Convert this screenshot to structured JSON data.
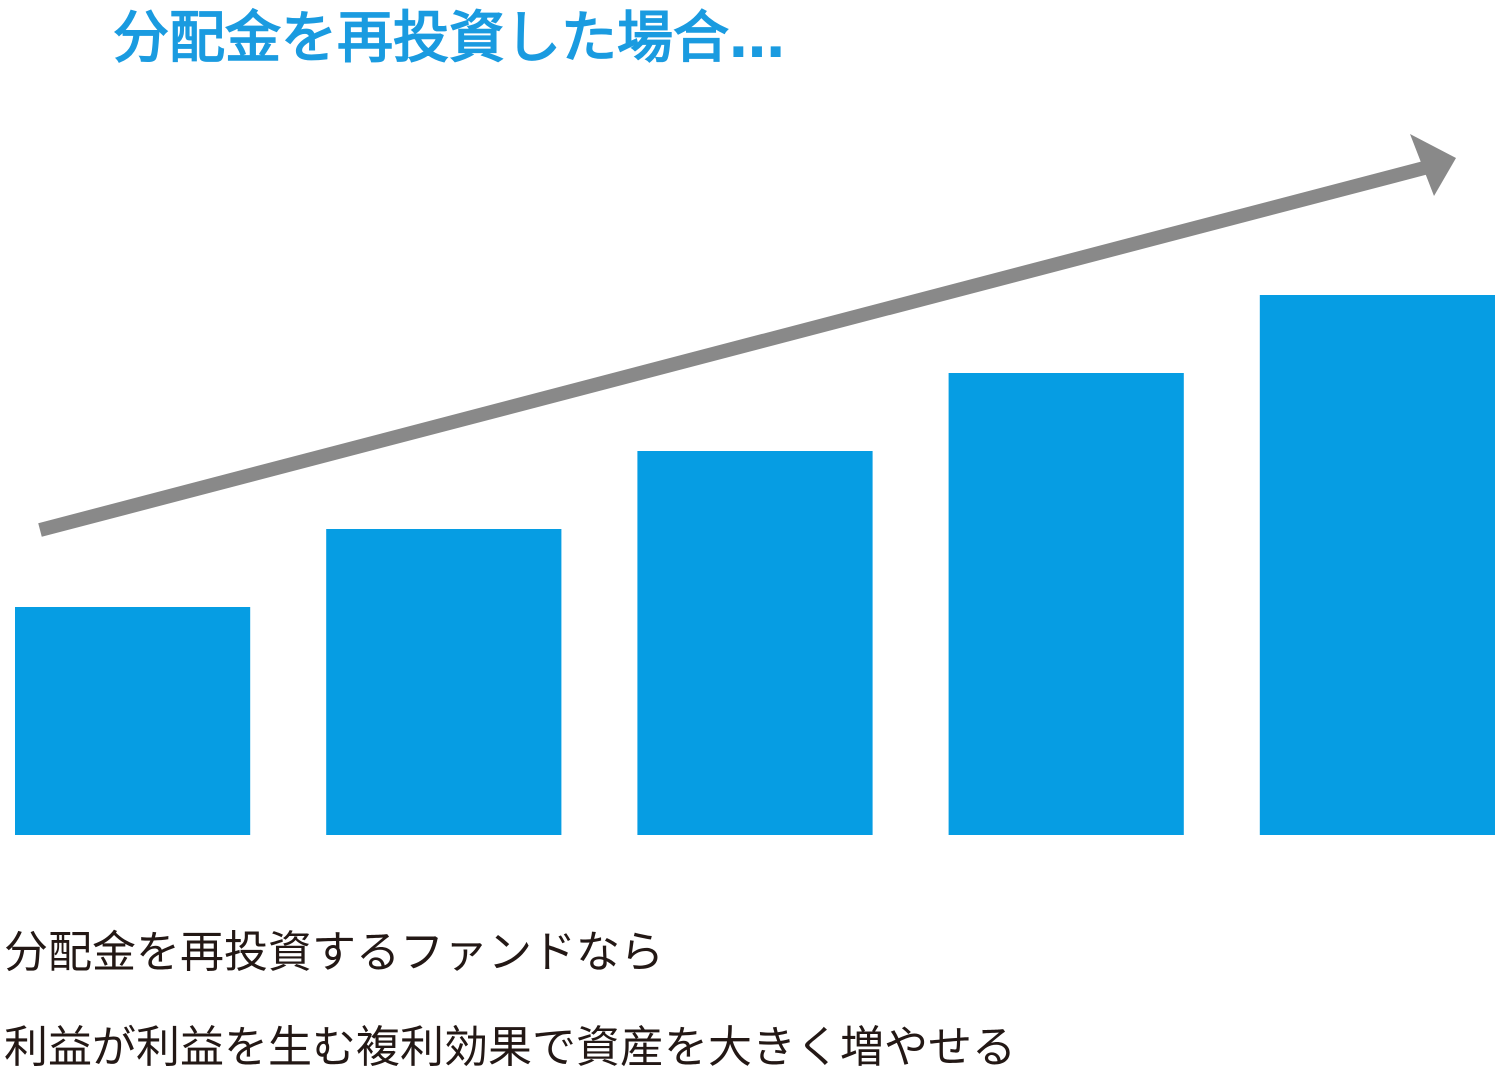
{
  "chart_data": {
    "type": "bar",
    "title": "分配金を再投資した場合…",
    "annotations": [
      "分配金を再投資するファンドなら",
      "利益が利益を生む複利効果で資産を大きく増やせる"
    ],
    "categories": [
      null,
      null,
      null,
      null,
      null
    ],
    "values": [
      228,
      306,
      384,
      462,
      540
    ],
    "color": "#069de3",
    "ylim": [
      0,
      540
    ]
  }
}
